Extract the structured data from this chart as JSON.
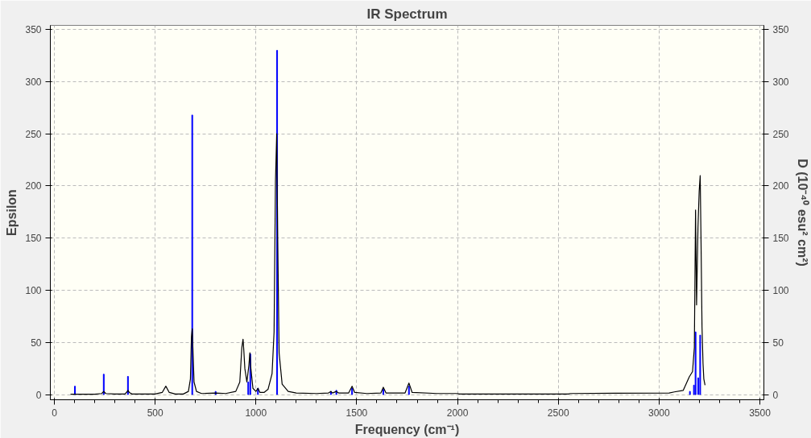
{
  "chart_data": {
    "type": "line",
    "title": "IR Spectrum",
    "xlabel": "Frequency (cm⁻¹)",
    "ylabel": "Epsilon",
    "y2label": "D (10⁻⁴⁰ esu² cm²)",
    "xlim": [
      -20,
      3520
    ],
    "xticks": [
      0,
      500,
      1000,
      1500,
      2000,
      2500,
      3000,
      3500
    ],
    "ylim": [
      -5,
      354
    ],
    "yticks": [
      0,
      50,
      100,
      150,
      200,
      250,
      300,
      350
    ],
    "y2lim": [
      -5,
      354
    ],
    "y2ticks": [
      0,
      50,
      100,
      150,
      200,
      250,
      300,
      350
    ],
    "grid": true,
    "marker": "none",
    "line_style": "solid",
    "series": [
      {
        "color": "#000000",
        "x": [
          80,
          200,
          235,
          245,
          255,
          300,
          350,
          360,
          365,
          372,
          385,
          500,
          535,
          553,
          570,
          600,
          640,
          665,
          675,
          680,
          684,
          688,
          693,
          705,
          730,
          800,
          850,
          900,
          920,
          930,
          936,
          940,
          945,
          955,
          965,
          970,
          975,
          985,
          1000,
          1010,
          1020,
          1040,
          1060,
          1080,
          1090,
          1097,
          1103,
          1108,
          1115,
          1130,
          1160,
          1200,
          1300,
          1360,
          1372,
          1380,
          1399,
          1410,
          1460,
          1477,
          1490,
          1550,
          1620,
          1632,
          1645,
          1740,
          1759,
          1775,
          1900,
          2000,
          2010,
          2550,
          2560,
          3050,
          3076,
          3120,
          3150,
          3166,
          3175,
          3181,
          3186,
          3193,
          3199,
          3204,
          3208,
          3213,
          3218,
          3222,
          3228
        ],
        "values": [
          0.3,
          0.3,
          1,
          3,
          1,
          0.5,
          0.5,
          2.5,
          4,
          2,
          0.5,
          0.5,
          2,
          8,
          2,
          0.5,
          0.5,
          3,
          15,
          55,
          63,
          40,
          12,
          3,
          1,
          1.5,
          1,
          3,
          12,
          45,
          53,
          42,
          25,
          12,
          28,
          40,
          25,
          6,
          3,
          6,
          2,
          2,
          5,
          20,
          60,
          205,
          250,
          150,
          40,
          10,
          3,
          1.5,
          1,
          1.5,
          3,
          1.5,
          3,
          1.5,
          1.5,
          8,
          2,
          1,
          1.5,
          7,
          1.5,
          1.5,
          11,
          2,
          1,
          1,
          0.5,
          0.5,
          1,
          1.5,
          2.5,
          4,
          17,
          22,
          45,
          177,
          86,
          160,
          195,
          210,
          150,
          65,
          30,
          15,
          9
        ]
      },
      {
        "type": "bar",
        "axis": "y2",
        "color": "#0000ff",
        "x": [
          102,
          245,
          365,
          684,
          800,
          962,
          972,
          1010,
          1105,
          1372,
          1399,
          1477,
          1632,
          1759,
          3153,
          3173,
          3181,
          3194,
          3204
        ],
        "values": [
          8,
          19.5,
          17.4,
          268,
          3,
          12,
          39,
          6,
          330,
          3,
          4,
          6,
          5,
          8,
          3,
          9,
          60,
          16,
          57
        ]
      }
    ]
  }
}
